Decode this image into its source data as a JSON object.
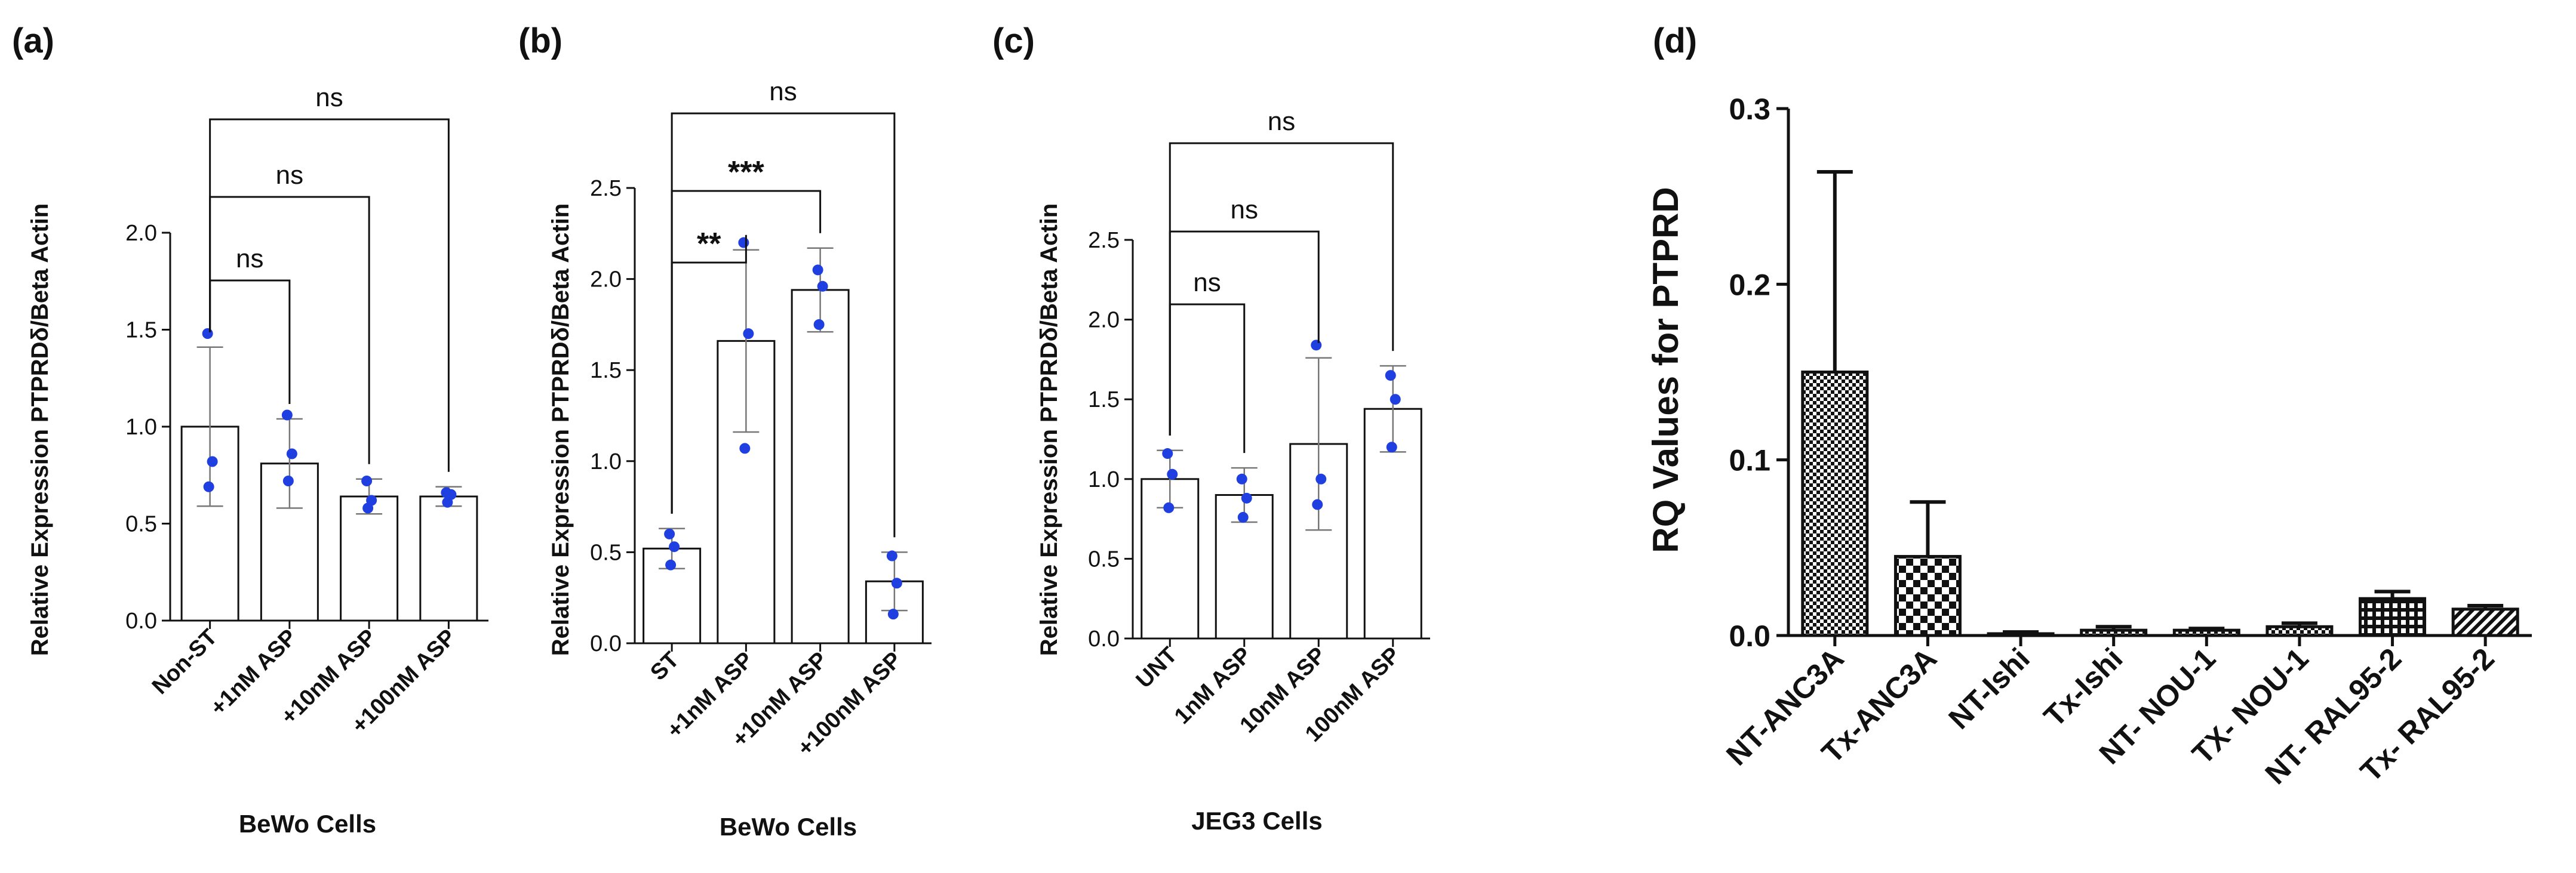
{
  "chart_data": [
    {
      "panel": "(a)",
      "type": "bar",
      "ylabel": "Relative Expression PTPRDδ/Beta Actin",
      "xlabel": "BeWo Cells",
      "categories": [
        "Non-ST",
        "+1nM ASP",
        "+10nM ASP",
        "+100nM ASP"
      ],
      "values": [
        1.0,
        0.81,
        0.64,
        0.64
      ],
      "sd": [
        0.41,
        0.23,
        0.09,
        0.05
      ],
      "points": [
        [
          1.48,
          0.82,
          0.69
        ],
        [
          1.06,
          0.86,
          0.72
        ],
        [
          0.72,
          0.62,
          0.58
        ],
        [
          0.66,
          0.65,
          0.61
        ]
      ],
      "ylim": [
        0,
        2.0
      ],
      "ticks": [
        "0.0",
        "0.5",
        "1.0",
        "1.5",
        "2.0"
      ],
      "comparisons": [
        {
          "from": 0,
          "to": 1,
          "label": "ns"
        },
        {
          "from": 0,
          "to": 2,
          "label": "ns"
        },
        {
          "from": 0,
          "to": 3,
          "label": "ns"
        }
      ]
    },
    {
      "panel": "(b)",
      "type": "bar",
      "ylabel": "Relative Expression PTPRDδ/Beta Actin",
      "xlabel": "BeWo Cells",
      "categories": [
        "ST",
        "+1nM ASP",
        "+10nM ASP",
        "+100nM ASP"
      ],
      "values": [
        0.52,
        1.66,
        1.94,
        0.34
      ],
      "sd": [
        0.11,
        0.5,
        0.23,
        0.16
      ],
      "points": [
        [
          0.6,
          0.53,
          0.43
        ],
        [
          2.2,
          1.7,
          1.07
        ],
        [
          2.05,
          1.96,
          1.75
        ],
        [
          0.48,
          0.33,
          0.16
        ]
      ],
      "ylim": [
        0,
        2.5
      ],
      "ticks": [
        "0.0",
        "0.5",
        "1.0",
        "1.5",
        "2.0",
        "2.5"
      ],
      "comparisons": [
        {
          "from": 0,
          "to": 1,
          "label": "**"
        },
        {
          "from": 0,
          "to": 2,
          "label": "***"
        },
        {
          "from": 0,
          "to": 3,
          "label": "ns"
        }
      ]
    },
    {
      "panel": "(c)",
      "type": "bar",
      "ylabel": "Relative Expression PTPRDδ/Beta Actin",
      "xlabel": "JEG3 Cells",
      "categories": [
        "UNT",
        "1nM ASP",
        "10nM ASP",
        "100nM ASP"
      ],
      "values": [
        1.0,
        0.9,
        1.22,
        1.44
      ],
      "sd": [
        0.18,
        0.17,
        0.54,
        0.27
      ],
      "points": [
        [
          1.16,
          1.03,
          0.82
        ],
        [
          1.0,
          0.88,
          0.76
        ],
        [
          1.84,
          1.0,
          0.84
        ],
        [
          1.65,
          1.5,
          1.2
        ]
      ],
      "ylim": [
        0,
        2.5
      ],
      "ticks": [
        "0.0",
        "0.5",
        "1.0",
        "1.5",
        "2.0",
        "2.5"
      ],
      "comparisons": [
        {
          "from": 0,
          "to": 1,
          "label": "ns"
        },
        {
          "from": 0,
          "to": 2,
          "label": "ns"
        },
        {
          "from": 0,
          "to": 3,
          "label": "ns"
        }
      ]
    },
    {
      "panel": "(d)",
      "type": "bar",
      "ylabel": "RQ  Values for PTPRD",
      "xlabel": "",
      "categories": [
        "NT-ANC3A",
        "Tx-ANC3A",
        "NT-Ishi",
        "Tx-Ishi",
        "NT- NOU-1",
        "TX- NOU-1",
        "NT- RAL95-2",
        "Tx- RAL95-2"
      ],
      "values": [
        0.15,
        0.045,
        0.001,
        0.003,
        0.003,
        0.005,
        0.021,
        0.015
      ],
      "errors": [
        0.114,
        0.031,
        0.001,
        0.002,
        0.001,
        0.002,
        0.004,
        0.002
      ],
      "patterns": [
        "checker-small",
        "checker-large",
        "checker-large",
        "checker-small",
        "checker-small",
        "checker-small",
        "grid",
        "diagonal"
      ],
      "ylim": [
        0,
        0.3
      ],
      "ticks": [
        "0.0",
        "0.1",
        "0.2",
        "0.3"
      ]
    }
  ],
  "style": {
    "dot_color": "#1f3fe0",
    "bar_fill": "#ffffff",
    "line_color": "#111111",
    "error_color": "#777777"
  }
}
